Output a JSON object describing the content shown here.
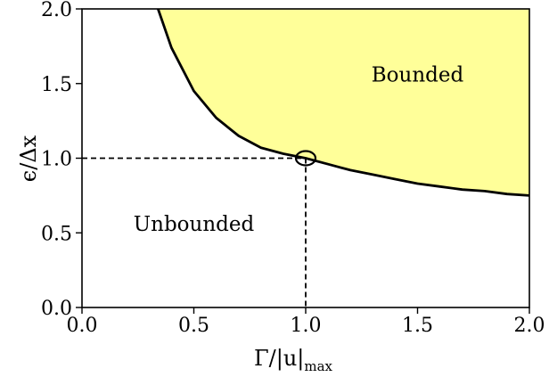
{
  "chart_data": {
    "type": "area",
    "xlabel_main": "Γ/|u|",
    "xlabel_sub": "max",
    "ylabel": "ϵ/Δx",
    "xlim": [
      0.0,
      2.0
    ],
    "ylim": [
      0.0,
      2.0
    ],
    "x_ticks": [
      "0.0",
      "0.5",
      "1.0",
      "1.5",
      "2.0"
    ],
    "y_ticks": [
      "0.0",
      "0.5",
      "1.0",
      "1.5",
      "2.0"
    ],
    "curve": {
      "description": "boundary between bounded and unbounded regions",
      "x": [
        0.34,
        0.4,
        0.5,
        0.6,
        0.7,
        0.8,
        0.9,
        1.0,
        1.1,
        1.2,
        1.3,
        1.4,
        1.5,
        1.6,
        1.7,
        1.8,
        1.9,
        2.0
      ],
      "y": [
        2.0,
        1.74,
        1.45,
        1.27,
        1.15,
        1.07,
        1.03,
        1.0,
        0.96,
        0.92,
        0.89,
        0.86,
        0.83,
        0.81,
        0.79,
        0.78,
        0.76,
        0.75
      ]
    },
    "regions": [
      {
        "label": "Bounded",
        "x": 1.5,
        "y": 1.55,
        "fill": "#ffff99"
      },
      {
        "label": "Unbounded",
        "x": 0.5,
        "y": 0.55
      }
    ],
    "marker_point": {
      "x": 1.0,
      "y": 1.0
    },
    "grid": false,
    "colors": {
      "bounded_fill": "#ffff99",
      "curve": "#000000",
      "guide": "#000000"
    }
  }
}
